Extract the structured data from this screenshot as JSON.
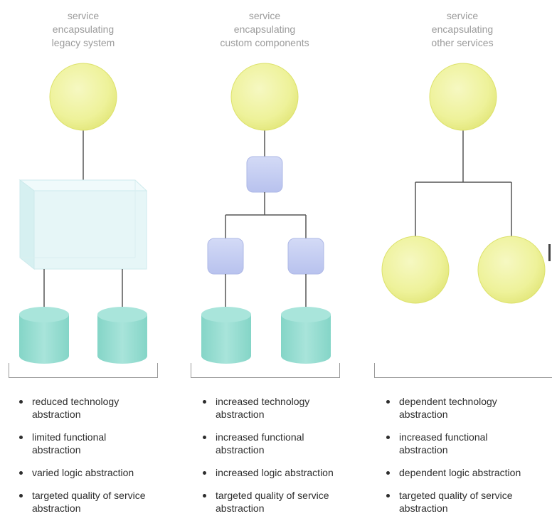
{
  "columns": [
    {
      "title": [
        "service",
        "encapsulating",
        "legacy system"
      ],
      "bullets": [
        [
          "reduced technology",
          "abstraction"
        ],
        [
          "limited functional",
          "abstraction"
        ],
        [
          "varied logic abstraction"
        ],
        [
          "targeted quality of service",
          "abstraction"
        ]
      ]
    },
    {
      "title": [
        "service",
        "encapsulating",
        "custom components"
      ],
      "bullets": [
        [
          "increased technology",
          "abstraction"
        ],
        [
          "increased functional",
          "abstraction"
        ],
        [
          "increased logic abstraction"
        ],
        [
          "targeted quality of service",
          "abstraction"
        ]
      ]
    },
    {
      "title": [
        "service",
        "encapsulating",
        "other services"
      ],
      "bullets": [
        [
          "dependent technology",
          "abstraction"
        ],
        [
          "increased functional",
          "abstraction"
        ],
        [
          "dependent logic abstraction"
        ],
        [
          "targeted quality of service",
          "abstraction"
        ]
      ]
    }
  ],
  "colors": {
    "service_fill": "#eef29a",
    "service_edge": "#dfe36e",
    "component_fill": "#c5cdf2",
    "database_fill": "#8fd9cc",
    "legacy_box_fill": "#e4f5f6",
    "connector": "#555555",
    "title_text": "#9b9b9b",
    "body_text": "#2d2d2d"
  }
}
